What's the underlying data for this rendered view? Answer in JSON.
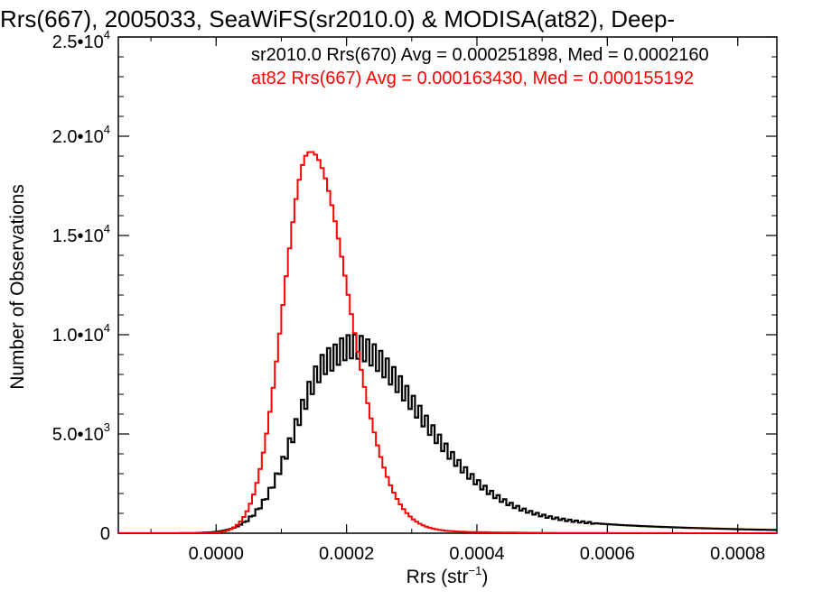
{
  "chart_data": {
    "type": "histogram",
    "title": "Rrs(667), 2005033, SeaWiFS(sr2010.0) & MODISA(at82), Deep-",
    "xlabel": "Rrs (str",
    "xlabel_sup": "−1",
    "xlabel_end": ")",
    "ylabel": "Number of Observations",
    "xlim": [
      -0.00015,
      0.00086
    ],
    "ylim": [
      0,
      25000
    ],
    "x_ticks": [
      {
        "value": 0.0,
        "label": "0.0000"
      },
      {
        "value": 0.0002,
        "label": "0.0002"
      },
      {
        "value": 0.0004,
        "label": "0.0004"
      },
      {
        "value": 0.0006,
        "label": "0.0006"
      },
      {
        "value": 0.0008,
        "label": "0.0008"
      }
    ],
    "y_ticks": [
      {
        "value": 0,
        "mant": "0",
        "exp": ""
      },
      {
        "value": 5000,
        "mant": "5.0•10",
        "exp": "3"
      },
      {
        "value": 10000,
        "mant": "1.0•10",
        "exp": "4"
      },
      {
        "value": 15000,
        "mant": "1.5•10",
        "exp": "4"
      },
      {
        "value": 20000,
        "mant": "2.0•10",
        "exp": "4"
      },
      {
        "value": 25000,
        "mant": "2.5•10",
        "exp": "4"
      }
    ],
    "bin_width": 5e-06,
    "series": [
      {
        "name": "sr2010.0",
        "legend": "sr2010.0 Rrs(670) Avg = 0.000251898, Med = 0.0002160",
        "color": "#000000",
        "shape": {
          "peak_x": 0.00018,
          "peak_y": 8800,
          "sigma_left": 5.8e-05,
          "sigma_right": 0.00012,
          "tail_amp": 2200,
          "tail_scale": 0.00026,
          "comb_amp": 600
        }
      },
      {
        "name": "at82",
        "legend": "at82 Rrs(667) Avg = 0.000163430, Med = 0.000155192",
        "color": "#ff0000",
        "shape": {
          "peak_x": 0.000143,
          "peak_y": 19200,
          "sigma_left": 4e-05,
          "sigma_right": 6e-05,
          "tail_amp": 700,
          "tail_scale": 0.0001,
          "comb_amp": 0
        }
      }
    ]
  }
}
